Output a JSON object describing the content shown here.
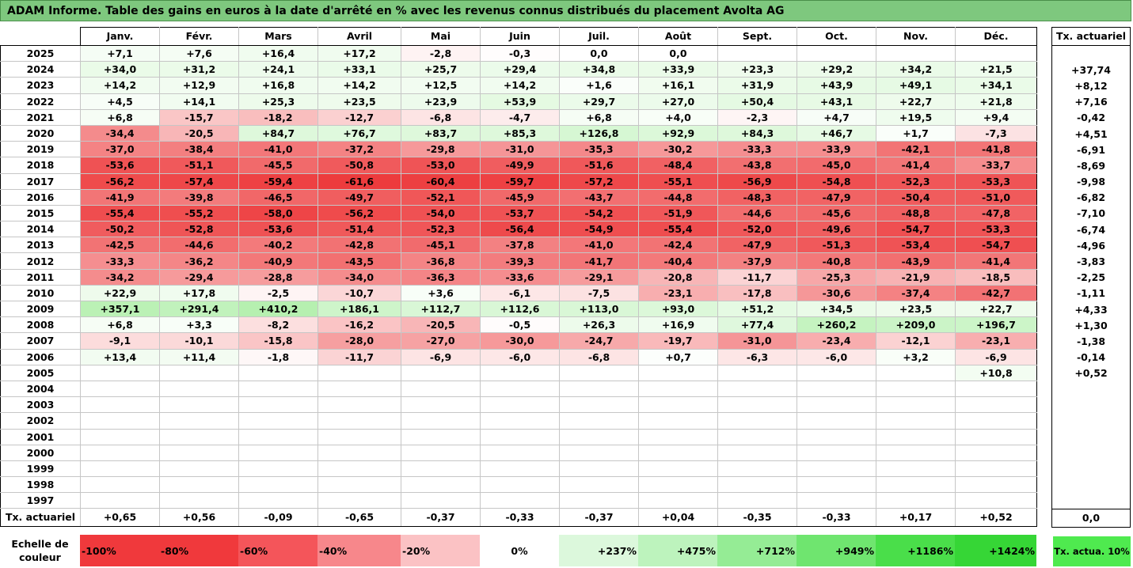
{
  "title": "ADAM Informe. Table des gains en euros à la date d'arrêté en % avec les revenus connus distribués du placement Avolta AG",
  "months": [
    "Janv.",
    "Févr.",
    "Mars",
    "Avril",
    "Mai",
    "Juin",
    "Juil.",
    "Août",
    "Sept.",
    "Oct.",
    "Nov.",
    "Déc."
  ],
  "side_header": "Tx. actuariel",
  "rows": [
    {
      "year": "2025",
      "v": [
        "+7,1",
        "+7,6",
        "+16,4",
        "+17,2",
        "-2,8",
        "-0,3",
        "0,0",
        "0,0",
        "",
        "",
        "",
        ""
      ],
      "rate": ""
    },
    {
      "year": "2024",
      "v": [
        "+34,0",
        "+31,2",
        "+24,1",
        "+33,1",
        "+25,7",
        "+29,4",
        "+34,8",
        "+33,9",
        "+23,3",
        "+29,2",
        "+34,2",
        "+21,5"
      ],
      "rate": "+37,74"
    },
    {
      "year": "2023",
      "v": [
        "+14,2",
        "+12,9",
        "+16,8",
        "+14,2",
        "+12,5",
        "+14,2",
        "+1,6",
        "+16,1",
        "+31,9",
        "+43,9",
        "+49,1",
        "+34,1"
      ],
      "rate": "+8,12"
    },
    {
      "year": "2022",
      "v": [
        "+4,5",
        "+14,1",
        "+25,3",
        "+23,5",
        "+23,9",
        "+53,9",
        "+29,7",
        "+27,0",
        "+50,4",
        "+43,1",
        "+22,7",
        "+21,8"
      ],
      "rate": "+7,16"
    },
    {
      "year": "2021",
      "v": [
        "+6,8",
        "-15,7",
        "-18,2",
        "-12,7",
        "-6,8",
        "-4,7",
        "+6,8",
        "+4,0",
        "-2,3",
        "+4,7",
        "+19,5",
        "+9,4"
      ],
      "rate": "-0,42"
    },
    {
      "year": "2020",
      "v": [
        "-34,4",
        "-20,5",
        "+84,7",
        "+76,7",
        "+83,7",
        "+85,3",
        "+126,8",
        "+92,9",
        "+84,3",
        "+46,7",
        "+1,7",
        "-7,3"
      ],
      "rate": "+4,51"
    },
    {
      "year": "2019",
      "v": [
        "-37,0",
        "-38,4",
        "-41,0",
        "-37,2",
        "-29,8",
        "-31,0",
        "-35,3",
        "-30,2",
        "-33,3",
        "-33,9",
        "-42,1",
        "-41,8"
      ],
      "rate": "-6,91"
    },
    {
      "year": "2018",
      "v": [
        "-53,6",
        "-51,1",
        "-45,5",
        "-50,8",
        "-53,0",
        "-49,9",
        "-51,6",
        "-48,4",
        "-43,8",
        "-45,0",
        "-41,4",
        "-33,7"
      ],
      "rate": "-8,69"
    },
    {
      "year": "2017",
      "v": [
        "-56,2",
        "-57,4",
        "-59,4",
        "-61,6",
        "-60,4",
        "-59,7",
        "-57,2",
        "-55,1",
        "-56,9",
        "-54,8",
        "-52,3",
        "-53,3"
      ],
      "rate": "-9,98"
    },
    {
      "year": "2016",
      "v": [
        "-41,9",
        "-39,8",
        "-46,5",
        "-49,7",
        "-52,1",
        "-45,9",
        "-43,7",
        "-44,8",
        "-48,3",
        "-47,9",
        "-50,4",
        "-51,0"
      ],
      "rate": "-6,82"
    },
    {
      "year": "2015",
      "v": [
        "-55,4",
        "-55,2",
        "-58,0",
        "-56,2",
        "-54,0",
        "-53,7",
        "-54,2",
        "-51,9",
        "-44,6",
        "-45,6",
        "-48,8",
        "-47,8"
      ],
      "rate": "-7,10"
    },
    {
      "year": "2014",
      "v": [
        "-50,2",
        "-52,8",
        "-53,6",
        "-51,4",
        "-52,3",
        "-56,4",
        "-54,9",
        "-55,4",
        "-52,0",
        "-49,6",
        "-54,7",
        "-53,3"
      ],
      "rate": "-6,74"
    },
    {
      "year": "2013",
      "v": [
        "-42,5",
        "-44,6",
        "-40,2",
        "-42,8",
        "-45,1",
        "-37,8",
        "-41,0",
        "-42,4",
        "-47,9",
        "-51,3",
        "-53,4",
        "-54,7"
      ],
      "rate": "-4,96"
    },
    {
      "year": "2012",
      "v": [
        "-33,3",
        "-36,2",
        "-40,9",
        "-43,5",
        "-36,8",
        "-39,3",
        "-41,7",
        "-40,4",
        "-37,9",
        "-40,8",
        "-43,9",
        "-41,4"
      ],
      "rate": "-3,83"
    },
    {
      "year": "2011",
      "v": [
        "-34,2",
        "-29,4",
        "-28,8",
        "-34,0",
        "-36,3",
        "-33,6",
        "-29,1",
        "-20,8",
        "-11,7",
        "-25,3",
        "-21,9",
        "-18,5"
      ],
      "rate": "-2,25"
    },
    {
      "year": "2010",
      "v": [
        "+22,9",
        "+17,8",
        "-2,5",
        "-10,7",
        "+3,6",
        "-6,1",
        "-7,5",
        "-23,1",
        "-17,8",
        "-30,6",
        "-37,4",
        "-42,7"
      ],
      "rate": "-1,11"
    },
    {
      "year": "2009",
      "v": [
        "+357,1",
        "+291,4",
        "+410,2",
        "+186,1",
        "+112,7",
        "+112,6",
        "+113,0",
        "+93,0",
        "+51,2",
        "+34,5",
        "+23,5",
        "+22,7"
      ],
      "rate": "+4,33"
    },
    {
      "year": "2008",
      "v": [
        "+6,8",
        "+3,3",
        "-8,2",
        "-16,2",
        "-20,5",
        "-0,5",
        "+26,3",
        "+16,9",
        "+77,4",
        "+260,2",
        "+209,0",
        "+196,7"
      ],
      "rate": "+1,30"
    },
    {
      "year": "2007",
      "v": [
        "-9,1",
        "-10,1",
        "-15,8",
        "-28,0",
        "-27,0",
        "-30,0",
        "-24,7",
        "-19,7",
        "-31,0",
        "-23,4",
        "-12,1",
        "-23,1"
      ],
      "rate": "-1,38"
    },
    {
      "year": "2006",
      "v": [
        "+13,4",
        "+11,4",
        "-1,8",
        "-11,7",
        "-6,9",
        "-6,0",
        "-6,8",
        "+0,7",
        "-6,3",
        "-6,0",
        "+3,2",
        "-6,9"
      ],
      "rate": "-0,14"
    },
    {
      "year": "2005",
      "v": [
        "",
        "",
        "",
        "",
        "",
        "",
        "",
        "",
        "",
        "",
        "",
        "+10,8"
      ],
      "rate": "+0,52"
    },
    {
      "year": "2004",
      "v": [
        "",
        "",
        "",
        "",
        "",
        "",
        "",
        "",
        "",
        "",
        "",
        ""
      ],
      "rate": ""
    },
    {
      "year": "2003",
      "v": [
        "",
        "",
        "",
        "",
        "",
        "",
        "",
        "",
        "",
        "",
        "",
        ""
      ],
      "rate": ""
    },
    {
      "year": "2002",
      "v": [
        "",
        "",
        "",
        "",
        "",
        "",
        "",
        "",
        "",
        "",
        "",
        ""
      ],
      "rate": ""
    },
    {
      "year": "2001",
      "v": [
        "",
        "",
        "",
        "",
        "",
        "",
        "",
        "",
        "",
        "",
        "",
        ""
      ],
      "rate": ""
    },
    {
      "year": "2000",
      "v": [
        "",
        "",
        "",
        "",
        "",
        "",
        "",
        "",
        "",
        "",
        "",
        ""
      ],
      "rate": ""
    },
    {
      "year": "1999",
      "v": [
        "",
        "",
        "",
        "",
        "",
        "",
        "",
        "",
        "",
        "",
        "",
        ""
      ],
      "rate": ""
    },
    {
      "year": "1998",
      "v": [
        "",
        "",
        "",
        "",
        "",
        "",
        "",
        "",
        "",
        "",
        "",
        ""
      ],
      "rate": ""
    },
    {
      "year": "1997",
      "v": [
        "",
        "",
        "",
        "",
        "",
        "",
        "",
        "",
        "",
        "",
        "",
        ""
      ],
      "rate": ""
    }
  ],
  "tx_row": {
    "label": "Tx. actuariel",
    "values": [
      "+0,65",
      "+0,56",
      "-0,09",
      "-0,65",
      "-0,37",
      "-0,33",
      "-0,37",
      "+0,04",
      "-0,35",
      "-0,33",
      "+0,17",
      "+0,52"
    ],
    "total": "0,0"
  },
  "scale": {
    "label": "Echelle de couleur",
    "items": [
      {
        "text": "-100%",
        "color": "#f0393c",
        "align": "left"
      },
      {
        "text": "-80%",
        "color": "#f0393c",
        "align": "left"
      },
      {
        "text": "-60%",
        "color": "#f4555a",
        "align": "left"
      },
      {
        "text": "-40%",
        "color": "#f7878b",
        "align": "left"
      },
      {
        "text": "-20%",
        "color": "#fbc2c4",
        "align": "left"
      },
      {
        "text": "0%",
        "color": "#ffffff",
        "align": "center"
      },
      {
        "text": "+237%",
        "color": "#dcf8dc",
        "align": "right"
      },
      {
        "text": "+475%",
        "color": "#bdf3bd",
        "align": "right"
      },
      {
        "text": "+712%",
        "color": "#95ec95",
        "align": "right"
      },
      {
        "text": "+949%",
        "color": "#6fe56f",
        "align": "right"
      },
      {
        "text": "+1186%",
        "color": "#4ade4a",
        "align": "right"
      },
      {
        "text": "+1424%",
        "color": "#36d636",
        "align": "right"
      }
    ],
    "side_text": "Tx. actua. 10%",
    "side_color": "#4fea4f"
  },
  "colors": {
    "title_bg": "#7ec87e",
    "negative_max": "#ed3a3c",
    "positive_max": "#b6f0b0"
  }
}
